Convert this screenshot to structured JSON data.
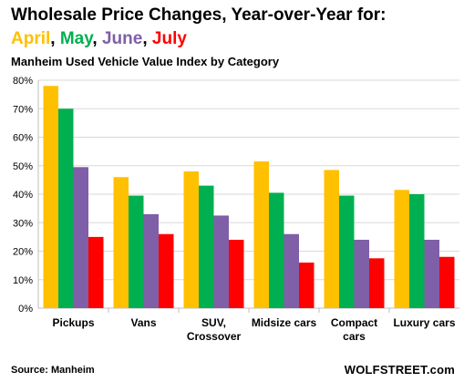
{
  "title": "Wholesale Price Changes, Year-over-Year for:",
  "legend_line": [
    {
      "text": "April",
      "color": "#FFC000"
    },
    {
      "text": ", ",
      "color": "#000000"
    },
    {
      "text": "May",
      "color": "#00B050"
    },
    {
      "text": ", ",
      "color": "#000000"
    },
    {
      "text": "June",
      "color": "#7F5FA8"
    },
    {
      "text": ", ",
      "color": "#000000"
    },
    {
      "text": "July",
      "color": "#FF0000"
    }
  ],
  "subtitle": "Manheim Used Vehicle Value Index by Category",
  "source": "Source: Manheim",
  "brand": "WOLFSTREET.com",
  "chart_data": {
    "type": "bar",
    "categories": [
      [
        "Pickups"
      ],
      [
        "Vans"
      ],
      [
        "SUV,",
        "Crossover"
      ],
      [
        "Midsize cars"
      ],
      [
        "Compact",
        "cars"
      ],
      [
        "Luxury cars"
      ]
    ],
    "series": [
      {
        "name": "April",
        "color": "#FFC000",
        "values": [
          78,
          46,
          48,
          51.5,
          48.5,
          41.5
        ]
      },
      {
        "name": "May",
        "color": "#00B050",
        "values": [
          70,
          39.5,
          43,
          40.5,
          39.5,
          40
        ]
      },
      {
        "name": "June",
        "color": "#7F5FA8",
        "values": [
          49.5,
          33,
          32.5,
          26,
          24,
          24
        ]
      },
      {
        "name": "July",
        "color": "#FF0000",
        "values": [
          25,
          26,
          24,
          16,
          17.5,
          18
        ]
      }
    ],
    "yticks": [
      "0%",
      "10%",
      "20%",
      "30%",
      "40%",
      "50%",
      "60%",
      "70%",
      "80%"
    ],
    "ylim": [
      0,
      80
    ],
    "grid": true,
    "legend": "in title"
  }
}
